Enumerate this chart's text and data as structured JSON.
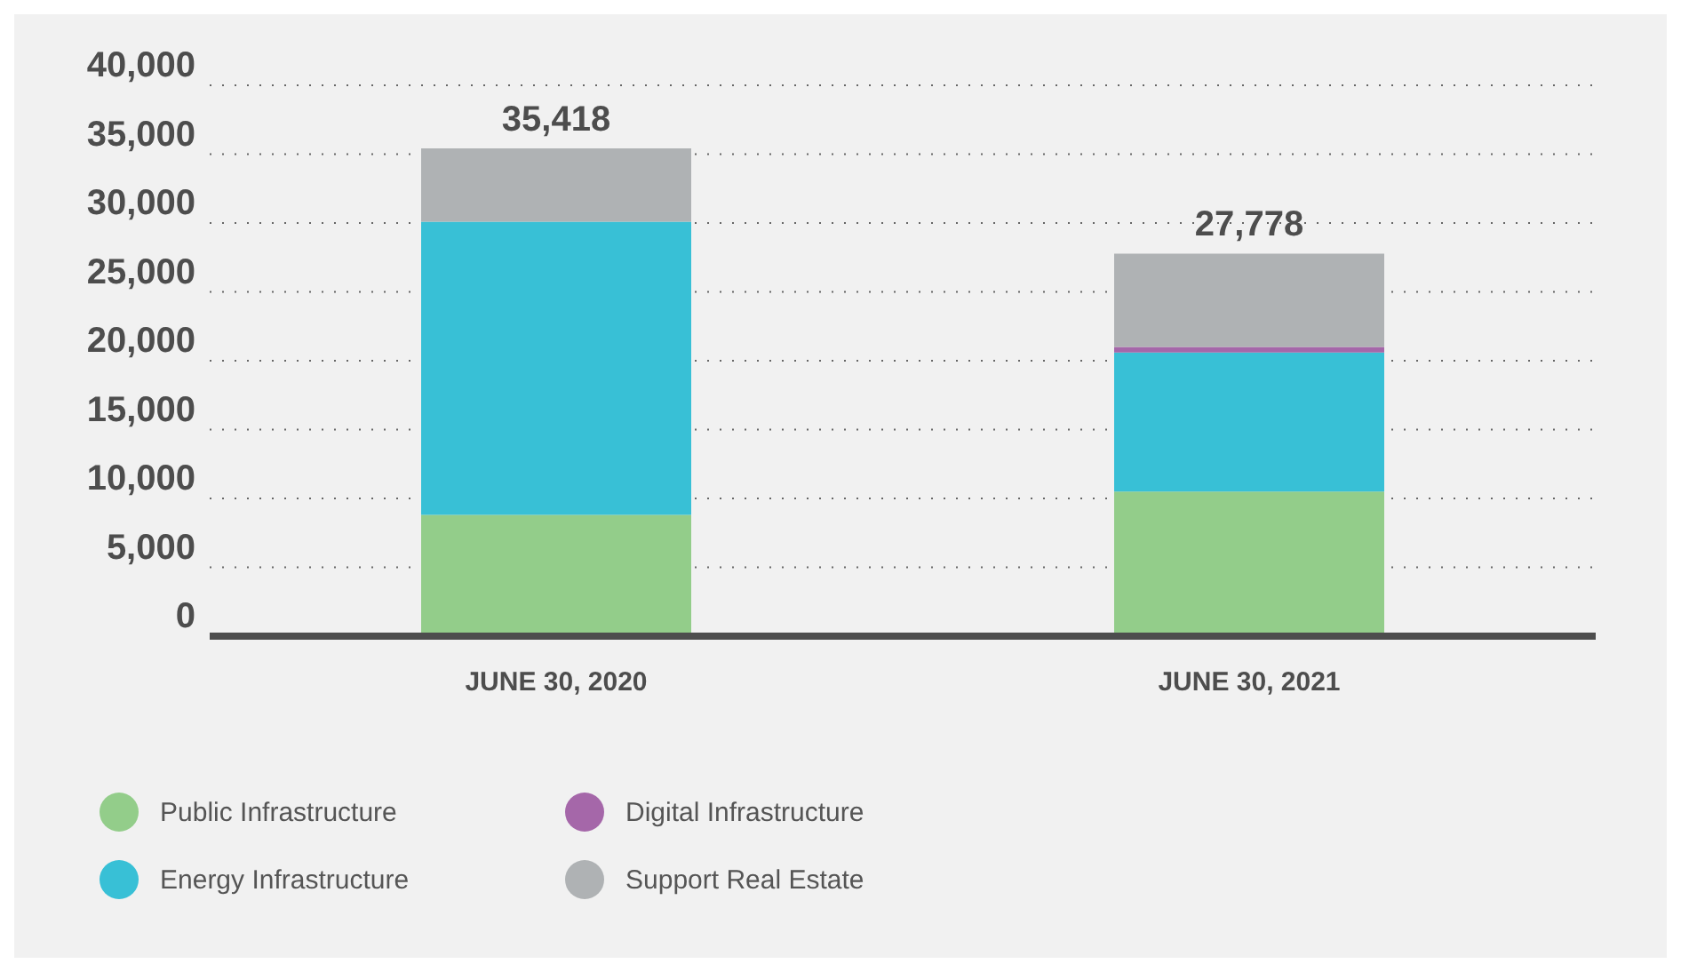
{
  "chart_data": {
    "type": "bar",
    "stacked": true,
    "categories": [
      "JUNE 30, 2020",
      "JUNE 30, 2021"
    ],
    "series": [
      {
        "name": "Public Infrastructure",
        "color": "#93cd8a",
        "values": [
          8800,
          10500
        ]
      },
      {
        "name": "Energy Infrastructure",
        "color": "#38c0d6",
        "values": [
          21300,
          10100
        ]
      },
      {
        "name": "Digital Infrastructure",
        "color": "#a567a9",
        "values": [
          0,
          400
        ]
      },
      {
        "name": "Support Real Estate",
        "color": "#afb2b4",
        "values": [
          5318,
          6778
        ]
      }
    ],
    "totals": [
      "35,418",
      "27,778"
    ],
    "ylim": [
      0,
      40000
    ],
    "yticks": [
      {
        "value": 0,
        "label": "0"
      },
      {
        "value": 5000,
        "label": "5,000"
      },
      {
        "value": 10000,
        "label": "10,000"
      },
      {
        "value": 15000,
        "label": "15,000"
      },
      {
        "value": 20000,
        "label": "20,000"
      },
      {
        "value": 25000,
        "label": "25,000"
      },
      {
        "value": 30000,
        "label": "30,000"
      },
      {
        "value": 35000,
        "label": "35,000"
      },
      {
        "value": 40000,
        "label": "40,000"
      }
    ],
    "grid": "y",
    "legend": "bottom"
  }
}
